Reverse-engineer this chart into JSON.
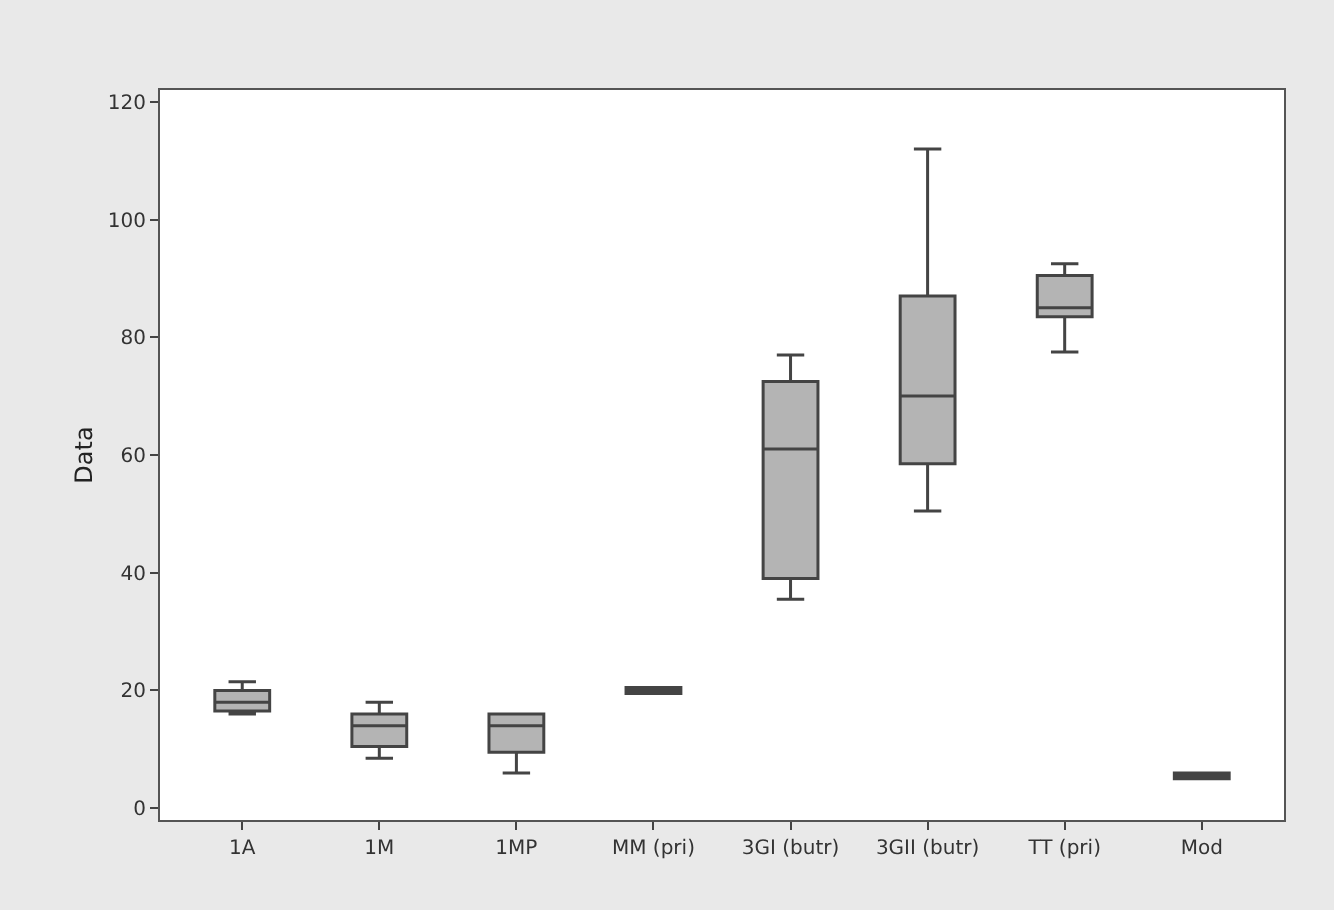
{
  "chart_data": {
    "type": "box",
    "ylabel": "Data",
    "categories": [
      "1A",
      "1M",
      "1MP",
      "MM (pri)",
      "3GI (butr)",
      "3GII (butr)",
      "TT (pri)",
      "Mod"
    ],
    "series": [
      {
        "color": "#b4b4b4",
        "boxes": [
          {
            "low": 16,
            "q1": 16.5,
            "median": 18,
            "q3": 20,
            "high": 21.5
          },
          {
            "low": 8.5,
            "q1": 10.5,
            "median": 14,
            "q3": 16,
            "high": 18
          },
          {
            "low": 6,
            "q1": 9.5,
            "median": 14,
            "q3": 16,
            "high": 16
          },
          {
            "low": 19.5,
            "q1": 19.5,
            "median": 20,
            "q3": 20.5,
            "high": 20.5
          },
          {
            "low": 35.5,
            "q1": 39,
            "median": 61,
            "q3": 72.5,
            "high": 77
          },
          {
            "low": 50.5,
            "q1": 58.5,
            "median": 70,
            "q3": 87,
            "high": 112
          },
          {
            "low": 77.5,
            "q1": 83.5,
            "median": 85,
            "q3": 90.5,
            "high": 92.5
          },
          {
            "low": 5,
            "q1": 5,
            "median": 5.5,
            "q3": 6,
            "high": 6
          }
        ]
      }
    ],
    "ylim": [
      -2,
      122
    ],
    "yticks": [
      0,
      20,
      40,
      60,
      80,
      100,
      120
    ],
    "grid": false
  }
}
